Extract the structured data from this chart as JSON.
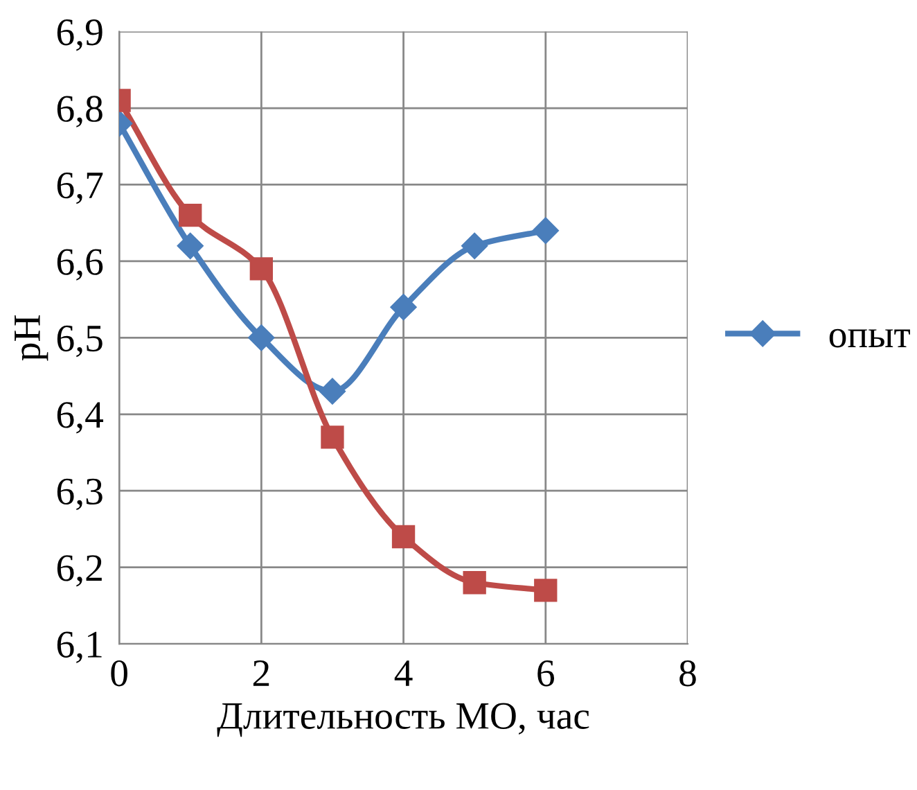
{
  "chart_data": {
    "type": "line",
    "xlabel": "Длительность МО, час",
    "ylabel": "рН",
    "x": [
      0,
      1,
      2,
      3,
      4,
      5,
      6
    ],
    "series": [
      {
        "name": "опыт",
        "color": "#4a7ebb",
        "marker": "diamond",
        "values": [
          6.78,
          6.62,
          6.5,
          6.43,
          6.54,
          6.62,
          6.64
        ]
      },
      {
        "color": "#be4b48",
        "marker": "square",
        "values": [
          6.81,
          6.66,
          6.59,
          6.37,
          6.24,
          6.18,
          6.17
        ]
      }
    ],
    "xlim": [
      0,
      8
    ],
    "xticks": [
      0,
      2,
      4,
      6,
      8
    ],
    "ylim": [
      6.1,
      6.9
    ],
    "yticks": [
      {
        "value": 6.1,
        "label": "6,1"
      },
      {
        "value": 6.2,
        "label": "6,2"
      },
      {
        "value": 6.3,
        "label": "6,3"
      },
      {
        "value": 6.4,
        "label": "6,4"
      },
      {
        "value": 6.5,
        "label": "6,5"
      },
      {
        "value": 6.6,
        "label": "6,6"
      },
      {
        "value": 6.7,
        "label": "6,7"
      },
      {
        "value": 6.8,
        "label": "6,8"
      },
      {
        "value": 6.9,
        "label": "6,9"
      }
    ],
    "grid": true,
    "legend": "right",
    "line_style": "solid"
  }
}
